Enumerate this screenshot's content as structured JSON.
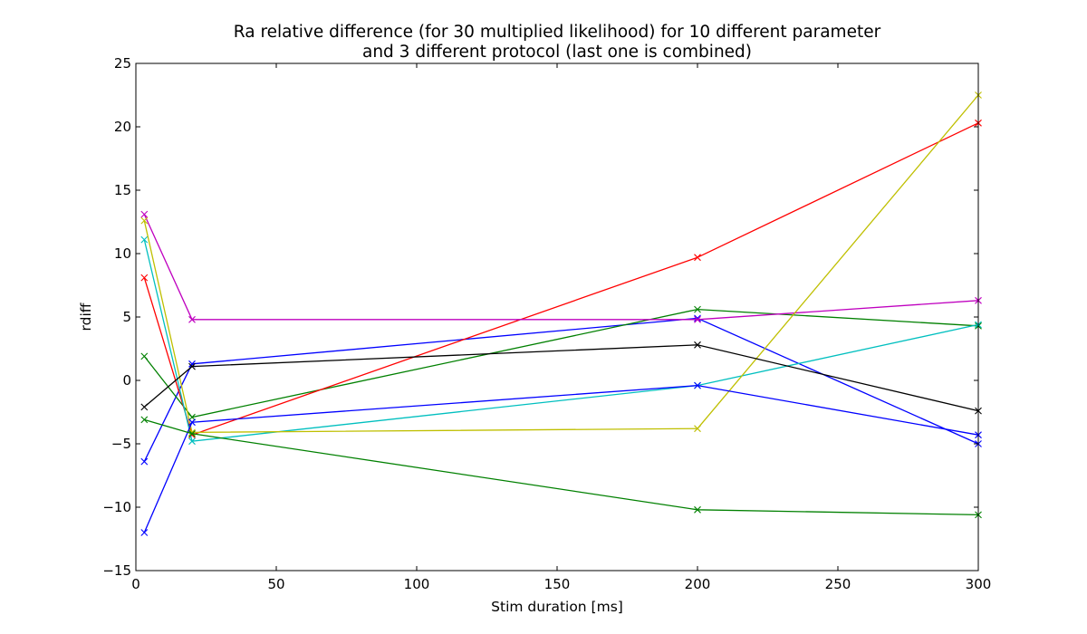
{
  "chart_data": {
    "type": "line",
    "title_lines": [
      "Ra relative difference (for 30 multiplied likelihood) for 10 different parameter",
      "and 3 different protocol (last one is combined)"
    ],
    "xlabel": "Stim duration [ms]",
    "ylabel": "rdiff",
    "xlim": [
      0,
      300
    ],
    "ylim": [
      -15,
      25
    ],
    "xticks": [
      0,
      50,
      100,
      150,
      200,
      250,
      300
    ],
    "yticks": [
      -15,
      -10,
      -5,
      0,
      5,
      10,
      15,
      20,
      25
    ],
    "grid": false,
    "legend": "none",
    "marker": "x",
    "x": [
      3,
      20,
      200,
      300
    ],
    "series": [
      {
        "color": "#0000ff",
        "values": [
          -6.4,
          1.3,
          4.9,
          -5.0
        ]
      },
      {
        "color": "#008000",
        "values": [
          1.9,
          -2.9,
          5.6,
          4.3
        ]
      },
      {
        "color": "#ff0000",
        "values": [
          8.1,
          -4.3,
          9.7,
          20.3
        ]
      },
      {
        "color": "#00bfbf",
        "values": [
          11.1,
          -4.8,
          -0.4,
          4.4
        ]
      },
      {
        "color": "#bf00bf",
        "values": [
          13.1,
          4.8,
          4.8,
          6.3
        ]
      },
      {
        "color": "#bfbf00",
        "values": [
          12.6,
          -4.1,
          -3.8,
          22.5
        ]
      },
      {
        "color": "#000000",
        "values": [
          -2.1,
          1.1,
          2.8,
          -2.4
        ]
      },
      {
        "color": "#0000ff",
        "values": [
          -12.0,
          -3.3,
          -0.4,
          -4.3
        ]
      },
      {
        "color": "#008000",
        "values": [
          -3.1,
          -4.2,
          -10.2,
          -10.6
        ]
      }
    ]
  }
}
